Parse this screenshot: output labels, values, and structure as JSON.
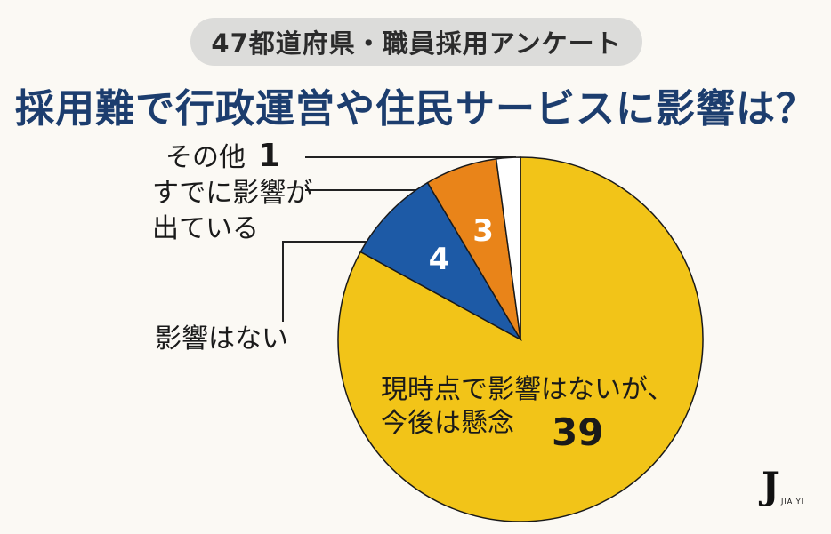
{
  "header": {
    "pill_text": "47都道府県・職員採用アンケート",
    "title": "採用難で行政運営や住民サービスに影響は？"
  },
  "chart_data": {
    "type": "pie",
    "title": "採用難で行政運営や住民サービスに影響は？",
    "subtitle": "47都道府県・職員採用アンケート",
    "start_angle": "12 o'clock",
    "direction": "counter-clockwise",
    "slices": [
      {
        "label": "現時点で影響はないが、今後は懸念",
        "value": 39,
        "color": "#f2c418"
      },
      {
        "label": "影響はない",
        "value": 4,
        "color": "#1d5aa6"
      },
      {
        "label": "すでに影響が出ている",
        "value": 3,
        "color": "#e98419"
      },
      {
        "label": "その他",
        "value": 1,
        "color": "#ffffff"
      }
    ]
  },
  "labels": {
    "other_label": "その他",
    "other_value": "1",
    "already_line1": "すでに影響が",
    "already_line2": "出ている",
    "none_label": "影響はない",
    "concern_line1": "現時点で影響はないが、",
    "concern_line2": "今後は懸念",
    "concern_value": "39",
    "none_value": "4",
    "already_value": "3"
  },
  "logo": {
    "letter": "J",
    "sub": "JIA YI"
  }
}
